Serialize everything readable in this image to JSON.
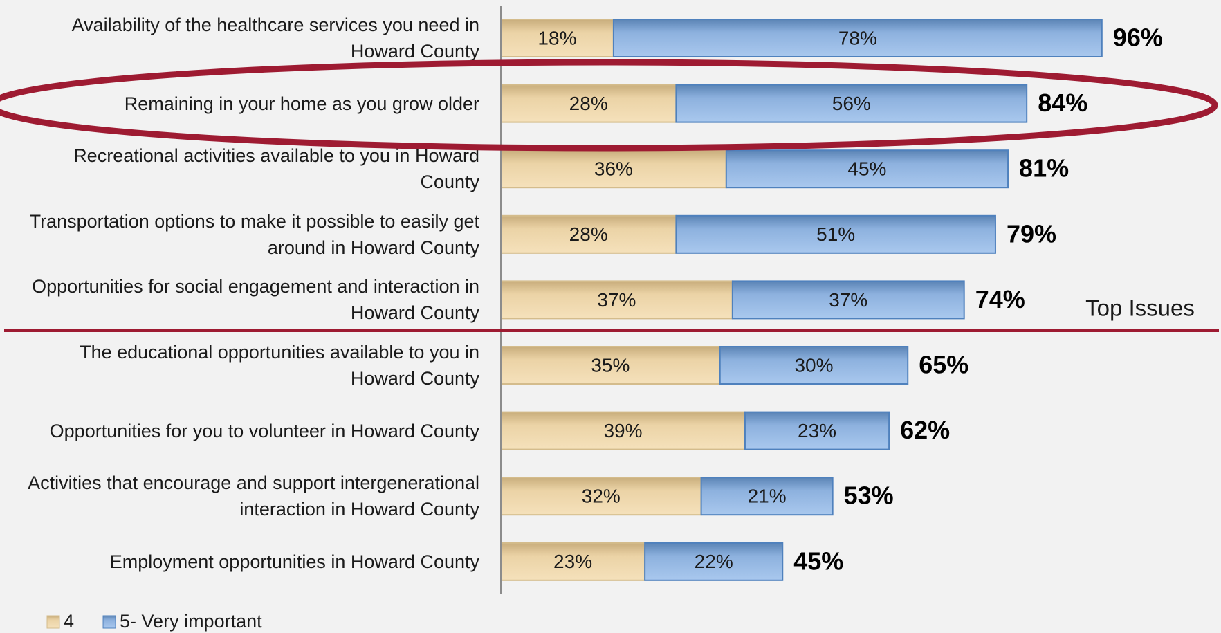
{
  "chart_data": {
    "type": "stacked-bar-horizontal",
    "categories": [
      "Availability of the healthcare services you need in Howard County",
      "Remaining in your home as you grow older",
      "Recreational activities available to you in Howard County",
      "Transportation options to make it possible to easily get around in Howard County",
      "Opportunities for social engagement and interaction in Howard County",
      "The educational opportunities available to you in Howard County",
      "Opportunities for you to volunteer in Howard County",
      "Activities that encourage and support intergenerational interaction in Howard County",
      "Employment opportunities in Howard County"
    ],
    "series": [
      {
        "name": "4",
        "color": "#e3c896",
        "values": [
          18,
          28,
          36,
          28,
          37,
          35,
          39,
          32,
          23
        ],
        "value_labels": [
          "18%",
          "28%",
          "36%",
          "28%",
          "37%",
          "35%",
          "39%",
          "32%",
          "23%"
        ]
      },
      {
        "name": "5- Very important",
        "color": "#8eb4e3",
        "values": [
          78,
          56,
          45,
          51,
          37,
          30,
          23,
          21,
          22
        ],
        "value_labels": [
          "78%",
          "56%",
          "45%",
          "51%",
          "37%",
          "30%",
          "23%",
          "21%",
          "22%"
        ]
      }
    ],
    "totals": [
      96,
      84,
      81,
      79,
      74,
      65,
      62,
      53,
      45
    ],
    "total_labels": [
      "96%",
      "84%",
      "81%",
      "79%",
      "74%",
      "65%",
      "62%",
      "53%",
      "45%"
    ],
    "annotation": "Top Issues",
    "xlim": [
      0,
      100
    ],
    "legend": "bottom-left"
  }
}
